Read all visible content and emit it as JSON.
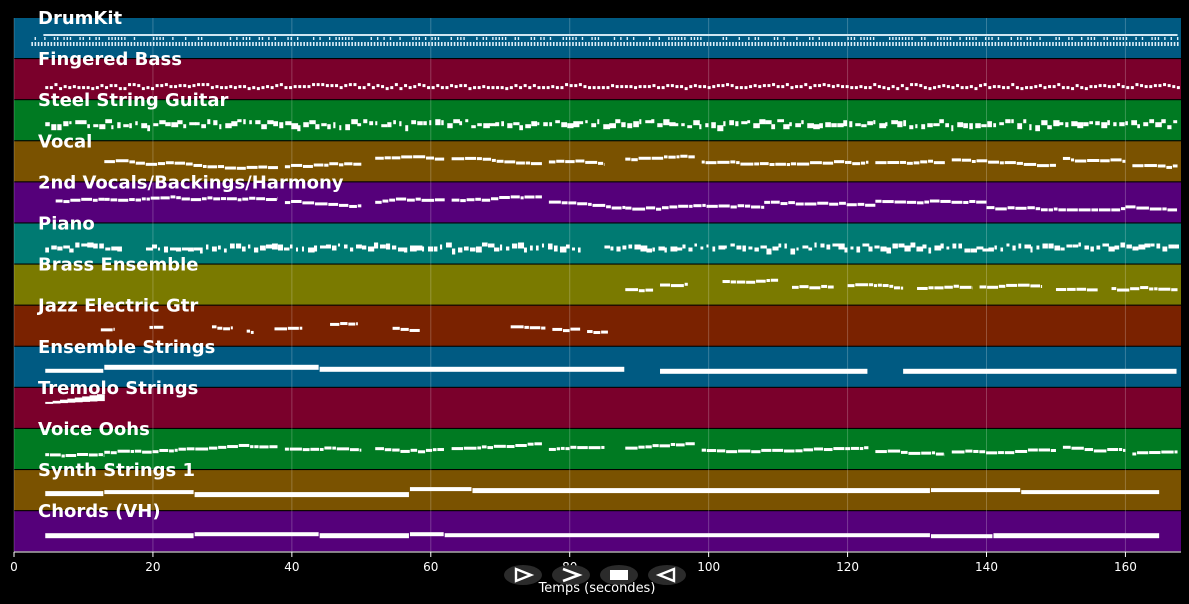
{
  "window": {
    "background": "#000000"
  },
  "timeline": {
    "xlabel": "Temps (secondes)",
    "xlim": [
      0,
      168
    ],
    "ticks": [
      0,
      20,
      40,
      60,
      80,
      100,
      120,
      140,
      160
    ],
    "tick_labels": [
      "0",
      "20",
      "40",
      "60",
      "80",
      "100",
      "120",
      "140",
      "160"
    ],
    "grid": true
  },
  "tracks": [
    {
      "name": "DrumKit",
      "color": "#005a82",
      "pattern": "drums",
      "segments": [
        [
          2.5,
          167.5
        ]
      ]
    },
    {
      "name": "Fingered Bass",
      "color": "#7a002b",
      "pattern": "dots",
      "segments": [
        [
          4.5,
          167.5
        ]
      ]
    },
    {
      "name": "Steel String Guitar",
      "color": "#007a22",
      "pattern": "dense",
      "segments": [
        [
          4.5,
          167.5
        ]
      ]
    },
    {
      "name": "Vocal",
      "color": "#7a5200",
      "pattern": "phrases",
      "segments": [
        [
          13,
          38
        ],
        [
          39,
          50
        ],
        [
          52,
          62
        ],
        [
          63,
          76
        ],
        [
          77,
          85
        ],
        [
          88,
          98
        ],
        [
          99,
          123
        ],
        [
          124,
          134
        ],
        [
          135,
          150
        ],
        [
          151,
          160
        ],
        [
          161,
          167.5
        ]
      ]
    },
    {
      "name": "2nd Vocals/Backings/Harmony",
      "color": "#55007a",
      "pattern": "phrases",
      "segments": [
        [
          6,
          13
        ],
        [
          13,
          38
        ],
        [
          39,
          50
        ],
        [
          52,
          62
        ],
        [
          63,
          76
        ],
        [
          77,
          88
        ],
        [
          88,
          108
        ],
        [
          108,
          124
        ],
        [
          124,
          140
        ],
        [
          140,
          160
        ],
        [
          160,
          167.5
        ]
      ]
    },
    {
      "name": "Piano",
      "color": "#007a72",
      "pattern": "dense",
      "segments": [
        [
          4.5,
          15
        ],
        [
          19,
          82
        ],
        [
          85,
          167.5
        ]
      ]
    },
    {
      "name": "Brass Ensemble",
      "color": "#7a7a00",
      "pattern": "phrases",
      "segments": [
        [
          88,
          92
        ],
        [
          93,
          97
        ],
        [
          102,
          110
        ],
        [
          112,
          118
        ],
        [
          120,
          128
        ],
        [
          130,
          138
        ],
        [
          139,
          148
        ],
        [
          150,
          156
        ],
        [
          158,
          167.5
        ]
      ]
    },
    {
      "name": "Jazz Electric Gtr",
      "color": "#7a2200",
      "pattern": "phrases",
      "segments": [
        [
          12.5,
          14.5
        ],
        [
          19.5,
          21.5
        ],
        [
          28.5,
          31.5
        ],
        [
          33.5,
          34.5
        ],
        [
          37.5,
          41.5
        ],
        [
          45.5,
          49.5
        ],
        [
          54.5,
          58.5
        ],
        [
          71.5,
          76.5
        ],
        [
          77.5,
          81.5
        ],
        [
          82.5,
          85.5
        ]
      ]
    },
    {
      "name": "Ensemble Strings",
      "color": "#005a82",
      "pattern": "sustain",
      "segments": [
        [
          4.5,
          13
        ],
        [
          13,
          44
        ],
        [
          44,
          88
        ],
        [
          93,
          123
        ],
        [
          128,
          167.5
        ]
      ]
    },
    {
      "name": "Tremolo Strings",
      "color": "#7a002b",
      "pattern": "swell",
      "segments": [
        [
          4.5,
          13
        ]
      ]
    },
    {
      "name": "Voice Oohs",
      "color": "#007a22",
      "pattern": "phrases",
      "segments": [
        [
          4.5,
          13
        ],
        [
          13,
          38
        ],
        [
          39,
          50
        ],
        [
          52,
          62
        ],
        [
          63,
          76
        ],
        [
          77,
          85
        ],
        [
          88,
          98
        ],
        [
          99,
          123
        ],
        [
          124,
          134
        ],
        [
          135,
          150
        ],
        [
          151,
          160
        ],
        [
          161,
          167.5
        ]
      ]
    },
    {
      "name": "Synth Strings 1",
      "color": "#7a5200",
      "pattern": "sustain",
      "segments": [
        [
          4.5,
          13
        ],
        [
          13,
          26
        ],
        [
          26,
          57
        ],
        [
          57,
          66
        ],
        [
          66,
          132
        ],
        [
          132,
          145
        ],
        [
          145,
          165
        ]
      ]
    },
    {
      "name": "Chords (VH)",
      "color": "#55007a",
      "pattern": "sustain",
      "segments": [
        [
          4.5,
          26
        ],
        [
          26,
          44
        ],
        [
          44,
          57
        ],
        [
          57,
          62
        ],
        [
          62,
          132
        ],
        [
          132,
          141
        ],
        [
          141,
          165
        ]
      ]
    }
  ],
  "controls": [
    {
      "name": "play-button",
      "icon": "play-icon"
    },
    {
      "name": "forward-button",
      "icon": "forward-icon"
    },
    {
      "name": "stop-button",
      "icon": "stop-icon"
    },
    {
      "name": "rewind-button",
      "icon": "rewind-icon"
    }
  ]
}
